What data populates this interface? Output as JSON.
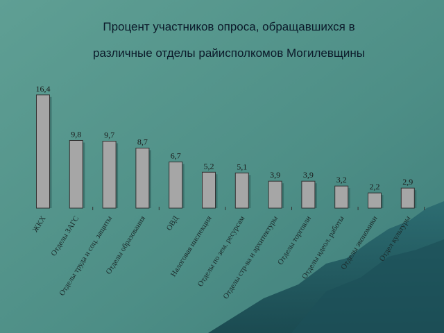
{
  "chart_data": {
    "type": "bar",
    "title": [
      "Процент участников опроса, обращавшихся в",
      "различные отделы райисполкомов Могилевщины"
    ],
    "categories": [
      "ЖКХ",
      "Отделы ЗАГС",
      "Отделы труда и соц. защиты",
      "Отделы образования",
      "ОВД",
      "Налоговая инспекция",
      "Отделы по зем. ресурсам",
      "Отделы стр-ва и архитектуры",
      "Отделы торговли",
      "Отделы идеол. работы",
      "Отделы экономики",
      "Отдел культуры"
    ],
    "values": [
      16.4,
      9.8,
      9.7,
      8.7,
      6.7,
      5.2,
      5.1,
      3.9,
      3.9,
      3.2,
      2.2,
      2.9
    ],
    "value_labels": [
      "16,4",
      "9,8",
      "9,7",
      "8,7",
      "6,7",
      "5,2",
      "5,1",
      "3,9",
      "3,9",
      "3,2",
      "2,2",
      "2,9"
    ],
    "color": "#a6a6a6"
  }
}
